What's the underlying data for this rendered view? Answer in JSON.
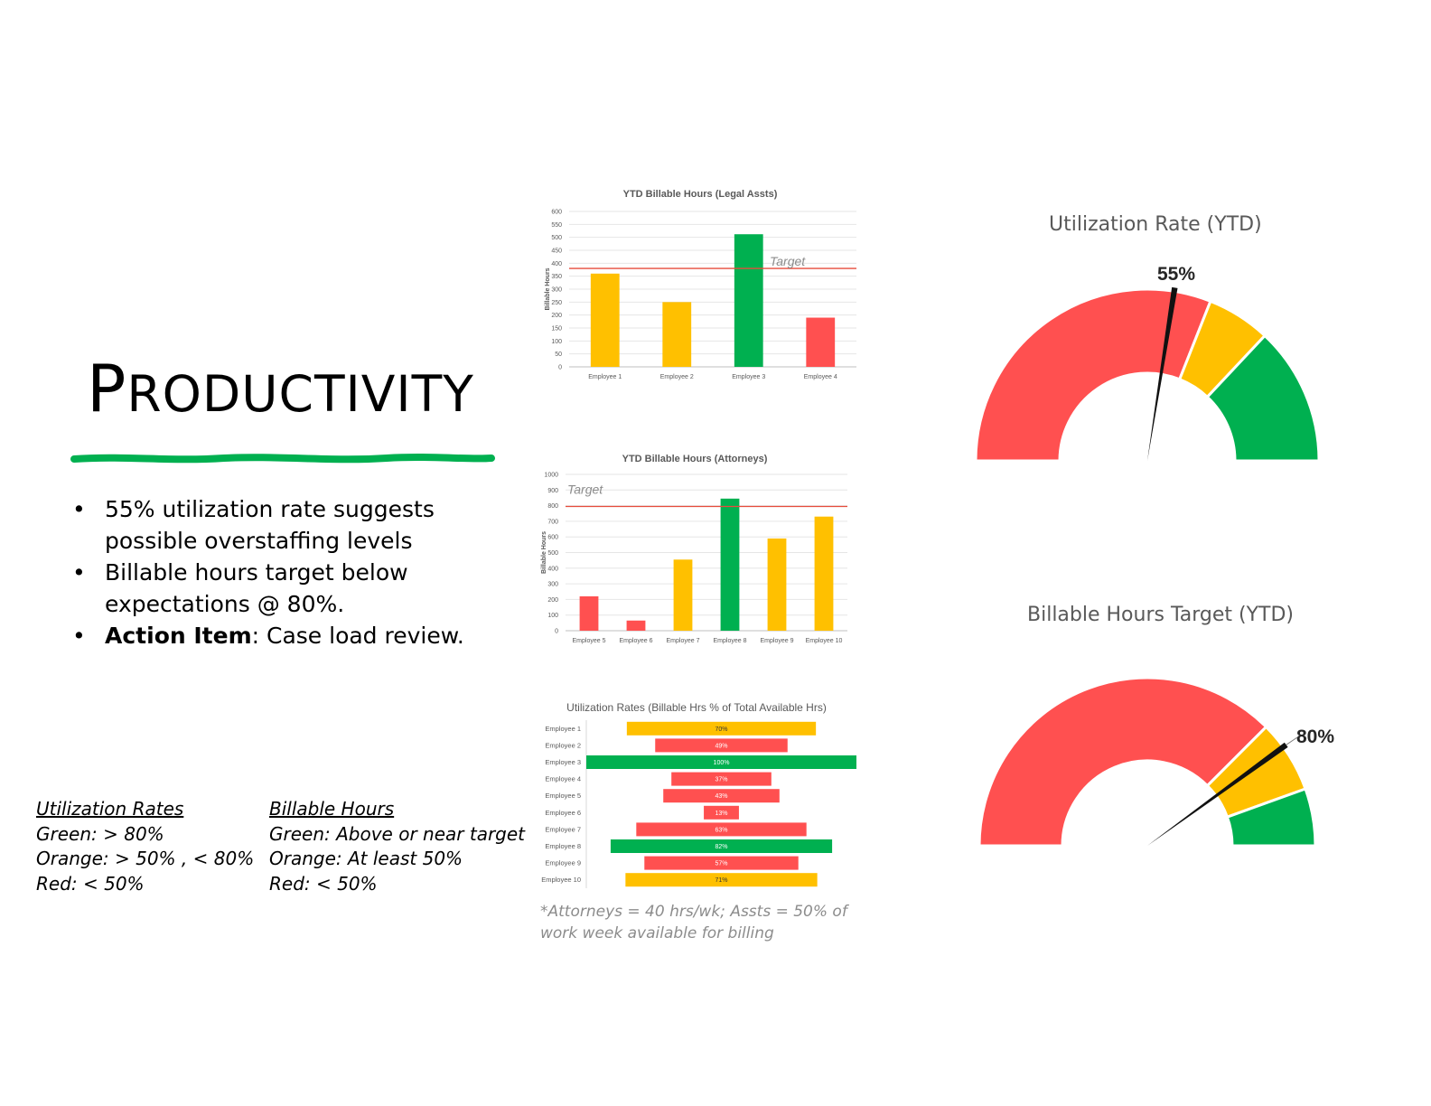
{
  "title": "Productivity",
  "colors": {
    "red": "#ff5050",
    "orange": "#ffc000",
    "green": "#00b050",
    "target_line": "#e74c3c",
    "accent": "#00b050"
  },
  "bullets": [
    {
      "bold": "",
      "text": "55% utilization rate suggests possible overstaffing levels"
    },
    {
      "bold": "",
      "text": "Billable hours target below expectations @ 80%."
    },
    {
      "bold": "Action Item",
      "text": ": Case load review."
    }
  ],
  "legend": {
    "utilization": {
      "heading": "Utilization Rates",
      "lines": [
        "Green: > 80%",
        "Orange: > 50% , < 80%",
        "Red: < 50%"
      ]
    },
    "billable": {
      "heading": "Billable Hours",
      "lines": [
        "Green: Above or near target",
        "Orange: At least 50%",
        "Red: < 50%"
      ]
    }
  },
  "footnote": "*Attorneys = 40 hrs/wk; Assts = 50% of work week available for billing",
  "chart_data": [
    {
      "id": "legal",
      "type": "bar",
      "title": "YTD Billable Hours (Legal Assts)",
      "ylabel": "Billable Hours",
      "ylim": [
        0,
        600
      ],
      "yticks": [
        0,
        50,
        100,
        150,
        200,
        250,
        300,
        350,
        400,
        450,
        500,
        550,
        600
      ],
      "categories": [
        "Employee 1",
        "Employee 2",
        "Employee 3",
        "Employee 4"
      ],
      "values": [
        360,
        250,
        512,
        190
      ],
      "bar_colors": [
        "orange",
        "orange",
        "green",
        "red"
      ],
      "target": 380,
      "target_label": "Target",
      "grid": true
    },
    {
      "id": "attorneys",
      "type": "bar",
      "title": "YTD Billable Hours (Attorneys)",
      "ylabel": "Billable Hours",
      "ylim": [
        0,
        1000
      ],
      "yticks": [
        0,
        100,
        200,
        300,
        400,
        500,
        600,
        700,
        800,
        900,
        1000
      ],
      "categories": [
        "Employee 5",
        "Employee 6",
        "Employee 7",
        "Employee 8",
        "Employee 9",
        "Employee 10"
      ],
      "values": [
        220,
        65,
        455,
        845,
        590,
        730
      ],
      "bar_colors": [
        "red",
        "red",
        "orange",
        "green",
        "orange",
        "orange"
      ],
      "target": 795,
      "target_label": "Target",
      "grid": true
    },
    {
      "id": "utilization",
      "type": "bar",
      "orientation": "horizontal-centered",
      "title": "Utilization Rates (Billable Hrs % of Total Available Hrs)",
      "categories": [
        "Employee 1",
        "Employee 2",
        "Employee 3",
        "Employee 4",
        "Employee 5",
        "Employee 6",
        "Employee 7",
        "Employee 8",
        "Employee 9",
        "Employee 10"
      ],
      "values": [
        70,
        49,
        100,
        37,
        43,
        13,
        63,
        82,
        57,
        71
      ],
      "labels": [
        "70%",
        "49%",
        "100%",
        "37%",
        "43%",
        "13%",
        "63%",
        "82%",
        "57%",
        "71%"
      ],
      "bar_colors": [
        "orange",
        "red",
        "green",
        "red",
        "red",
        "red",
        "red",
        "green",
        "red",
        "orange"
      ]
    },
    {
      "id": "gauge_util",
      "type": "gauge",
      "title": "Utilization Rate (YTD)",
      "value": 55,
      "value_label": "55%",
      "bands": [
        {
          "from": 0,
          "to": 62,
          "color": "red"
        },
        {
          "from": 62,
          "to": 74,
          "color": "orange"
        },
        {
          "from": 74,
          "to": 100,
          "color": "green"
        }
      ]
    },
    {
      "id": "gauge_billable",
      "type": "gauge",
      "title": "Billable Hours Target (YTD)",
      "value": 80,
      "value_label": "80%",
      "bands": [
        {
          "from": 0,
          "to": 75,
          "color": "red"
        },
        {
          "from": 75,
          "to": 89,
          "color": "orange"
        },
        {
          "from": 89,
          "to": 100,
          "color": "green"
        }
      ]
    }
  ]
}
